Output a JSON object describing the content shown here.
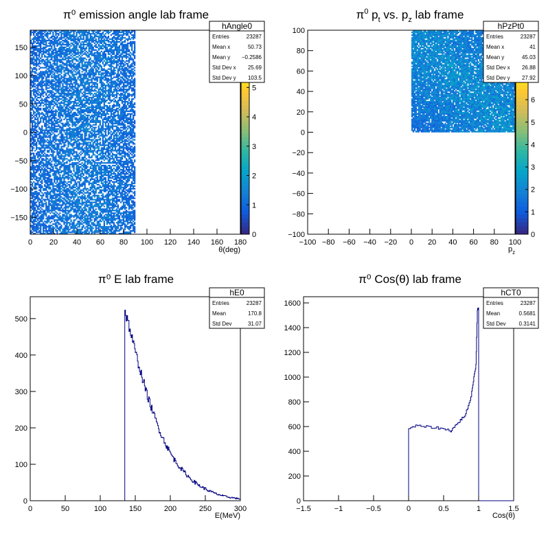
{
  "chart_data": [
    {
      "type": "heatmap",
      "name": "hAngle0",
      "title": "π⁰ emission angle lab frame",
      "xlabel": "θ(deg)",
      "ylabel": "",
      "xlim": [
        0,
        180
      ],
      "ylim": [
        -180,
        180
      ],
      "x_fill_range": [
        0,
        90
      ],
      "y_fill_range": [
        -180,
        180
      ],
      "x_ticks": [
        "0",
        "20",
        "40",
        "60",
        "80",
        "100",
        "120",
        "140",
        "160",
        "180"
      ],
      "y_ticks": [
        "−150",
        "−100",
        "−50",
        "0",
        "50",
        "100",
        "150"
      ],
      "z_ticks": [
        "0",
        "1",
        "2",
        "3",
        "4",
        "5"
      ],
      "zlim": [
        0,
        5.5
      ],
      "stats": {
        "title": "hAngle0",
        "rows": [
          {
            "label": "Entries",
            "value": "23287"
          },
          {
            "label": "Mean x",
            "value": "50.73"
          },
          {
            "label": "Mean y",
            "value": "−0.2586"
          },
          {
            "label": "Std Dev x",
            "value": "25.69"
          },
          {
            "label": "Std Dev y",
            "value": "103.5"
          }
        ]
      }
    },
    {
      "type": "heatmap",
      "name": "hPzPt0",
      "title_parts": [
        "π",
        "0",
        " p",
        "t",
        " vs. p",
        "z",
        " lab frame"
      ],
      "xlabel": "p",
      "xlabel_sub": "z",
      "ylabel": "",
      "xlim": [
        -100,
        100
      ],
      "ylim": [
        -100,
        100
      ],
      "x_fill_range": [
        0,
        100
      ],
      "y_fill_range": [
        0,
        100
      ],
      "x_ticks": [
        "−100",
        "−80",
        "−60",
        "−40",
        "−20",
        "0",
        "20",
        "40",
        "60",
        "80",
        "100"
      ],
      "y_ticks": [
        "−100",
        "−80",
        "−60",
        "−40",
        "−20",
        "0",
        "20",
        "40",
        "60",
        "80",
        "100"
      ],
      "z_ticks": [
        "0",
        "1",
        "2",
        "3",
        "4",
        "5",
        "6"
      ],
      "zlim": [
        0,
        7.2
      ],
      "stats": {
        "title": "hPzPt0",
        "rows": [
          {
            "label": "Entries",
            "value": "23287"
          },
          {
            "label": "Mean x",
            "value": "41"
          },
          {
            "label": "Mean y",
            "value": "45.03"
          },
          {
            "label": "Std Dev x",
            "value": "26.88"
          },
          {
            "label": "Std Dev y",
            "value": "27.92"
          }
        ]
      }
    },
    {
      "type": "line",
      "name": "hE0",
      "title": "π⁰ E lab frame",
      "xlabel": "E(MeV)",
      "ylabel": "",
      "xlim": [
        0,
        300
      ],
      "ylim": [
        0,
        560
      ],
      "x_ticks": [
        "0",
        "50",
        "100",
        "150",
        "200",
        "250",
        "300"
      ],
      "y_ticks": [
        "0",
        "100",
        "200",
        "300",
        "400",
        "500"
      ],
      "series": [
        {
          "x": [
            135,
            140,
            145,
            150,
            155,
            160,
            165,
            170,
            175,
            180,
            185,
            190,
            195,
            200,
            205,
            210,
            215,
            220,
            225,
            230,
            235,
            240,
            245,
            250,
            255,
            260,
            265,
            270,
            275,
            280,
            285,
            290,
            295,
            300
          ],
          "values": [
            520,
            485,
            445,
            405,
            370,
            335,
            300,
            270,
            242,
            215,
            190,
            168,
            148,
            130,
            114,
            100,
            88,
            77,
            67,
            58,
            50,
            43,
            37,
            32,
            27,
            23,
            19,
            16,
            13,
            11,
            9,
            8,
            6,
            5
          ]
        }
      ],
      "stats": {
        "title": "hE0",
        "rows": [
          {
            "label": "Entries",
            "value": "23287"
          },
          {
            "label": "Mean",
            "value": "170.8"
          },
          {
            "label": "Std Dev",
            "value": "31.07"
          }
        ]
      }
    },
    {
      "type": "line",
      "name": "hCT0",
      "title": "π⁰ Cos(θ) lab frame",
      "xlabel": "Cos(θ)",
      "ylabel": "",
      "xlim": [
        -1.5,
        1.5
      ],
      "ylim": [
        0,
        1650
      ],
      "x_ticks": [
        "−1.5",
        "−1",
        "−0.5",
        "0",
        "0.5",
        "1",
        "1.5"
      ],
      "y_ticks": [
        "0",
        "200",
        "400",
        "600",
        "800",
        "1000",
        "1200",
        "1400",
        "1600"
      ],
      "series": [
        {
          "x": [
            0,
            0.1,
            0.2,
            0.3,
            0.4,
            0.5,
            0.6,
            0.65,
            0.7,
            0.75,
            0.8,
            0.85,
            0.9,
            0.93,
            0.96,
            0.98,
            1.0
          ],
          "values": [
            585,
            605,
            600,
            595,
            590,
            580,
            565,
            600,
            625,
            660,
            690,
            760,
            880,
            1000,
            1100,
            1550,
            1550
          ]
        }
      ],
      "stats": {
        "title": "hCT0",
        "rows": [
          {
            "label": "Entries",
            "value": "23287"
          },
          {
            "label": "Mean",
            "value": "0.5681"
          },
          {
            "label": "Std Dev",
            "value": "0.3141"
          }
        ]
      }
    }
  ]
}
